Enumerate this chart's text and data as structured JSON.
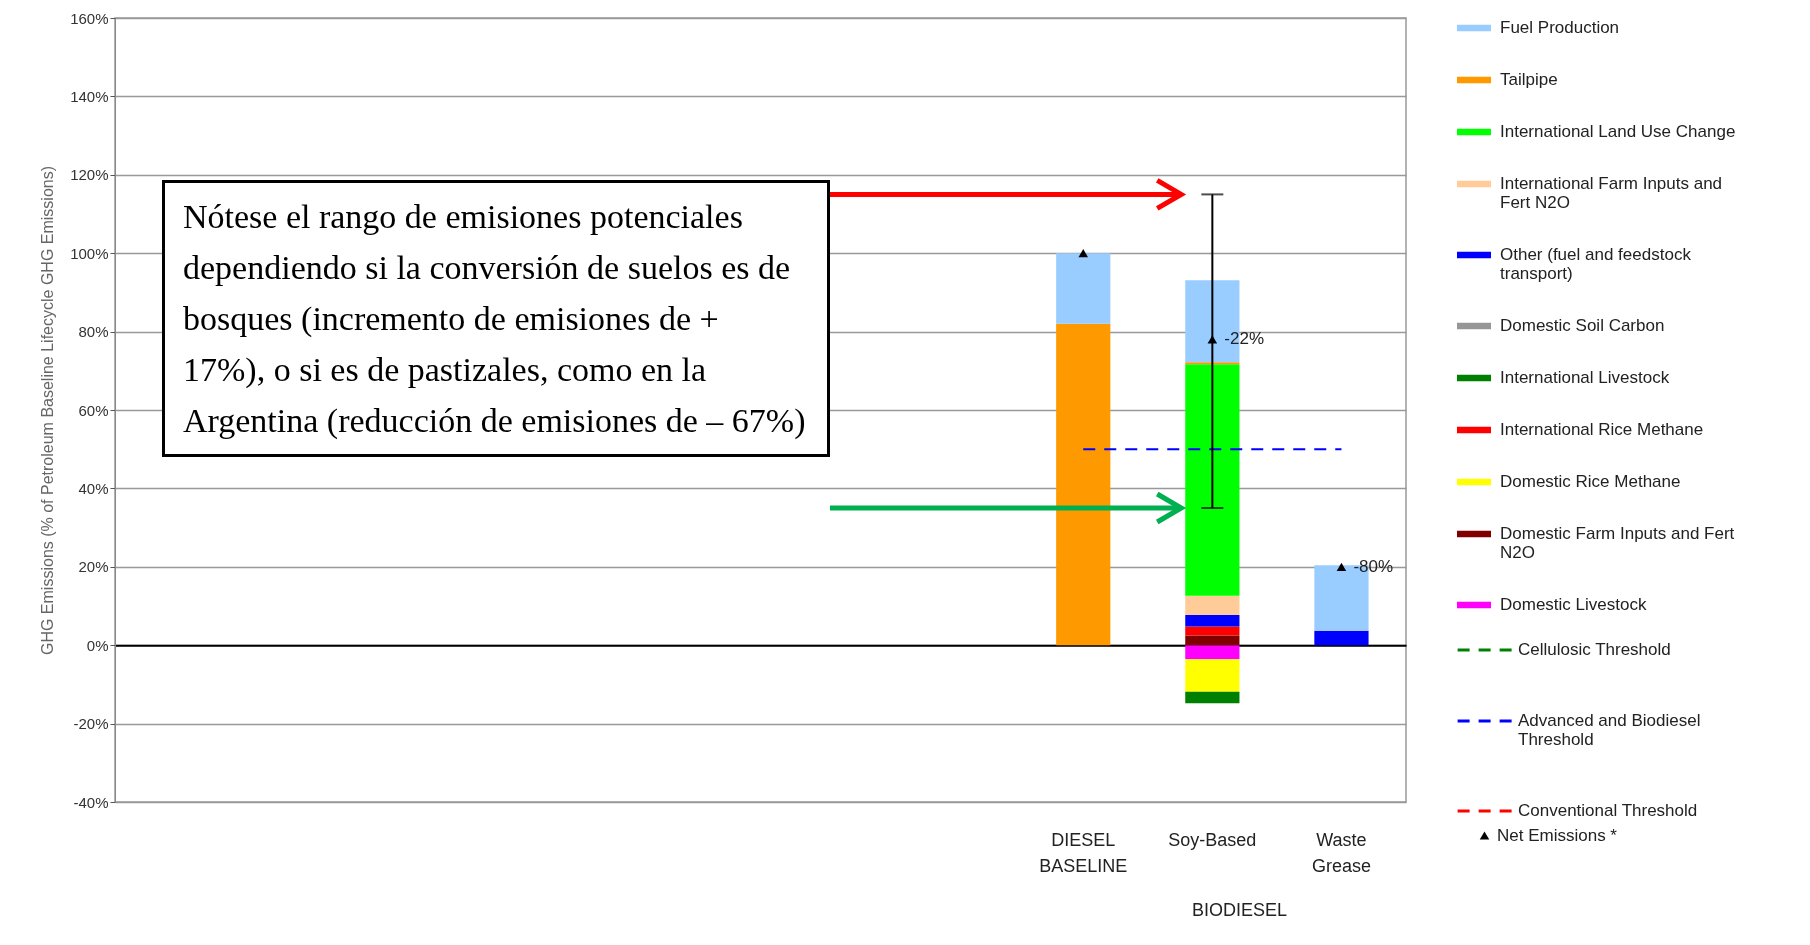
{
  "chart_data": {
    "type": "bar",
    "stacked": true,
    "ylabel": "GHG Emissions (% of Petroleum Baseline Lifecycle GHG Emissions)",
    "categories": [
      null,
      null,
      null,
      null,
      null,
      null,
      null,
      "DIESEL BASELINE",
      "Soy-Based",
      "Waste Grease"
    ],
    "ylim": [
      -40,
      160
    ],
    "yticks": [
      {
        "value": -40,
        "label": "-40%"
      },
      {
        "value": -20,
        "label": "-20%"
      },
      {
        "value": 0,
        "label": "0%"
      },
      {
        "value": 20,
        "label": "20%"
      },
      {
        "value": 40,
        "label": "40%"
      },
      {
        "value": 60,
        "label": "60%"
      },
      {
        "value": 80,
        "label": "80%"
      },
      {
        "value": 100,
        "label": "100%"
      },
      {
        "value": 120,
        "label": "120%"
      },
      {
        "value": 140,
        "label": "140%"
      },
      {
        "value": 160,
        "label": "160%"
      }
    ],
    "grid": "y",
    "legend": "right",
    "series": [
      {
        "name": "Domestic Livestock",
        "color": "#ff00ff",
        "values": [
          null,
          null,
          null,
          null,
          null,
          null,
          null,
          null,
          -3.6,
          null
        ]
      },
      {
        "name": "Domestic Farm Inputs and Fert N2O",
        "color": "#800000",
        "values": [
          null,
          null,
          null,
          null,
          null,
          null,
          null,
          null,
          2.5,
          null
        ]
      },
      {
        "name": "Domestic Rice Methane",
        "color": "#ffff00",
        "values": [
          null,
          null,
          null,
          null,
          null,
          null,
          null,
          null,
          -8.3,
          null
        ]
      },
      {
        "name": "International Rice Methane",
        "color": "#ff0000",
        "values": [
          null,
          null,
          null,
          null,
          null,
          null,
          null,
          null,
          2.3,
          null
        ]
      },
      {
        "name": "International Livestock",
        "color": "#008000",
        "values": [
          null,
          null,
          null,
          null,
          null,
          null,
          null,
          null,
          -2.9,
          null
        ]
      },
      {
        "name": "Domestic Soil Carbon",
        "color": "#969696",
        "values": [
          null,
          null,
          null,
          null,
          null,
          null,
          null,
          null,
          null,
          null
        ]
      },
      {
        "name": "Other (fuel and feedstock transport)",
        "color": "#0000ff",
        "values": [
          null,
          null,
          null,
          null,
          null,
          null,
          null,
          null,
          2.9,
          3.7
        ]
      },
      {
        "name": "International Farm Inputs and Fert N2O",
        "color": "#ffcc99",
        "values": [
          null,
          null,
          null,
          null,
          null,
          null,
          null,
          null,
          4.9,
          null
        ]
      },
      {
        "name": "International Land Use Change",
        "color": "#00ff00",
        "values": [
          null,
          null,
          null,
          null,
          null,
          null,
          null,
          null,
          59.1,
          null
        ]
      },
      {
        "name": "Tailpipe",
        "color": "#ff9900",
        "values": [
          null,
          null,
          null,
          null,
          null,
          null,
          null,
          82,
          0.5,
          null
        ]
      },
      {
        "name": "Fuel Production",
        "color": "#99ccff",
        "values": [
          null,
          null,
          null,
          null,
          null,
          null,
          null,
          18,
          20.9,
          16.7
        ]
      },
      {
        "name": "Cellulosic Threshold",
        "type": "line",
        "line_style": "dashed",
        "color": "#008000",
        "values": [
          null,
          null,
          null,
          null,
          null,
          null,
          null,
          null,
          null,
          null
        ]
      },
      {
        "name": "Advanced and Biodiesel Threshold",
        "type": "line",
        "line_style": "dashed",
        "color": "#0000ff",
        "values": [
          null,
          null,
          null,
          null,
          null,
          null,
          null,
          50,
          50,
          50
        ]
      },
      {
        "name": "Conventional Threshold",
        "type": "line",
        "line_style": "dashed",
        "color": "#ff0000",
        "values": [
          null,
          null,
          null,
          null,
          null,
          null,
          null,
          null,
          null,
          null
        ]
      },
      {
        "name": "Net Emissions *",
        "type": "scatter",
        "marker": "triangle",
        "color": "#000000",
        "values": [
          null,
          null,
          null,
          null,
          null,
          null,
          null,
          100,
          78,
          20
        ],
        "errors": [
          null,
          null,
          null,
          null,
          null,
          null,
          null,
          null,
          [
            35,
            115
          ],
          null
        ]
      }
    ],
    "annotations": [
      "Nótese el rango de emisiones potenciales dependiendo si la conversión de suelos es de bosques (incremento de emisiones de + 17%), o si es de pastizales, como en la Argentina (reducción de emisiones de – 67%)",
      "BIODIESEL",
      {
        "text": "-22%",
        "x": "Soy-Based",
        "y": 78
      },
      {
        "text": "-80%",
        "x": "Waste Grease",
        "y": 20
      }
    ]
  }
}
